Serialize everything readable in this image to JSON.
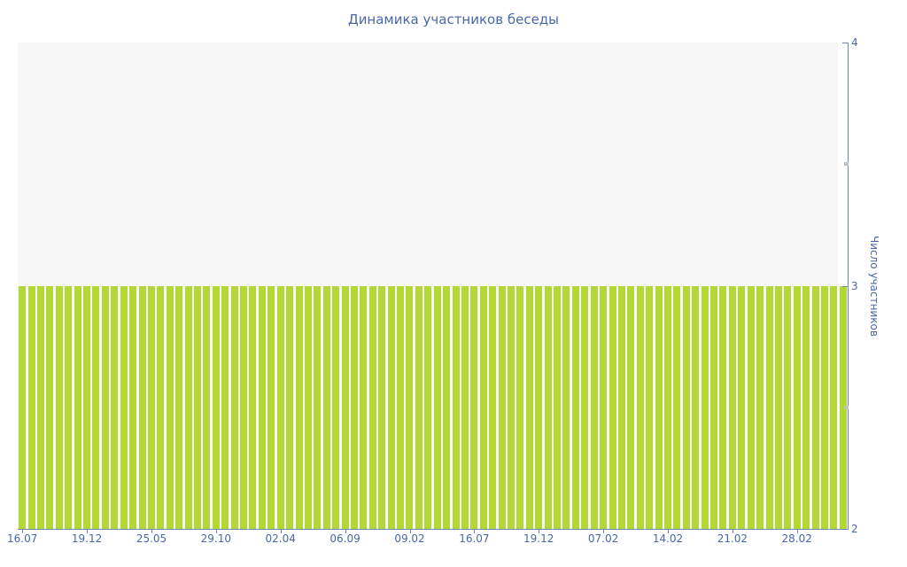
{
  "page": {
    "title": "Динамика участников беседы"
  },
  "colors": {
    "bar_green": "#b3d835",
    "axis_blue": "#6e84b6",
    "text_blue": "#4a67a8",
    "plot_background": "#f7f7f7",
    "minor_tick_gray": "#c2c2c2",
    "page_background": "#ffffff"
  },
  "chart_data": {
    "type": "bar",
    "title": "Динамика участников беседы",
    "xlabel": "",
    "ylabel": "Число участников",
    "ylim": [
      2,
      4
    ],
    "yticks": [
      2,
      3,
      4
    ],
    "yticks_minor": [
      2.5,
      3.5
    ],
    "grid": false,
    "legend": "none",
    "x_tick_labels": [
      "16.07",
      "19.12",
      "25.05",
      "29.10",
      "02.04",
      "06.09",
      "09.02",
      "16.07",
      "19.12",
      "07.02",
      "14.02",
      "21.02",
      "28.02"
    ],
    "x_tick_every_n_bars": 7,
    "bar_count": 90,
    "values": [
      3,
      3,
      3,
      3,
      3,
      3,
      3,
      3,
      3,
      3,
      3,
      3,
      3,
      3,
      3,
      3,
      3,
      3,
      3,
      3,
      3,
      3,
      3,
      3,
      3,
      3,
      3,
      3,
      3,
      3,
      3,
      3,
      3,
      3,
      3,
      3,
      3,
      3,
      3,
      3,
      3,
      3,
      3,
      3,
      3,
      3,
      3,
      3,
      3,
      3,
      3,
      3,
      3,
      3,
      3,
      3,
      3,
      3,
      3,
      3,
      3,
      3,
      3,
      3,
      3,
      3,
      3,
      3,
      3,
      3,
      3,
      3,
      3,
      3,
      3,
      3,
      3,
      3,
      3,
      3,
      3,
      3,
      3,
      3,
      3,
      3,
      3,
      3,
      3,
      3
    ]
  }
}
